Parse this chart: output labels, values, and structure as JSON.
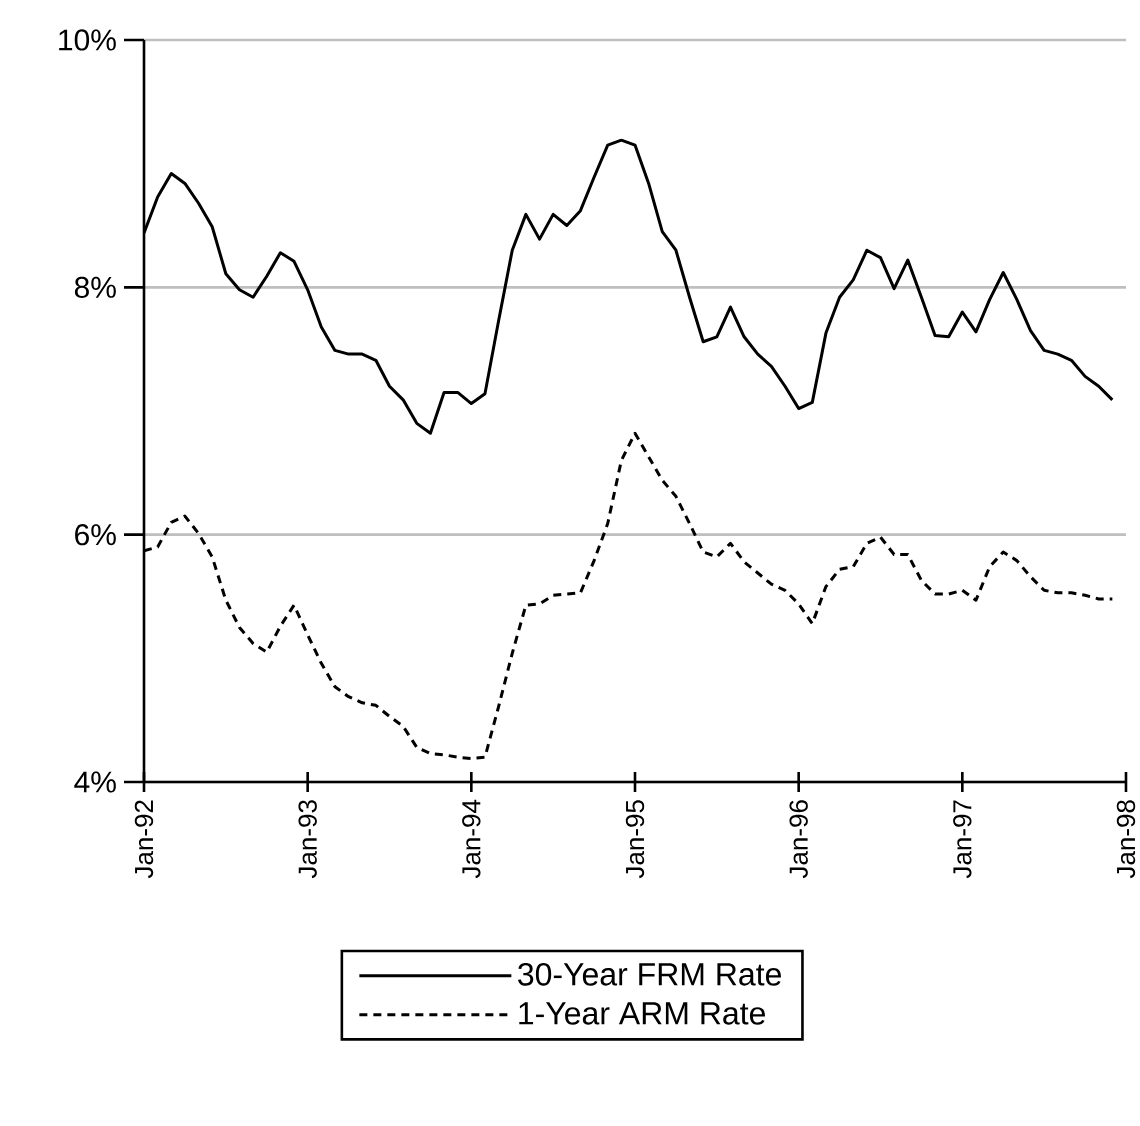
{
  "chart_data": {
    "type": "line",
    "x": [
      "1992-01",
      "1992-02",
      "1992-03",
      "1992-04",
      "1992-05",
      "1992-06",
      "1992-07",
      "1992-08",
      "1992-09",
      "1992-10",
      "1992-11",
      "1992-12",
      "1993-01",
      "1993-02",
      "1993-03",
      "1993-04",
      "1993-05",
      "1993-06",
      "1993-07",
      "1993-08",
      "1993-09",
      "1993-10",
      "1993-11",
      "1993-12",
      "1994-01",
      "1994-02",
      "1994-03",
      "1994-04",
      "1994-05",
      "1994-06",
      "1994-07",
      "1994-08",
      "1994-09",
      "1994-10",
      "1994-11",
      "1994-12",
      "1995-01",
      "1995-02",
      "1995-03",
      "1995-04",
      "1995-05",
      "1995-06",
      "1995-07",
      "1995-08",
      "1995-09",
      "1995-10",
      "1995-11",
      "1995-12",
      "1996-01",
      "1996-02",
      "1996-03",
      "1996-04",
      "1996-05",
      "1996-06",
      "1996-07",
      "1996-08",
      "1996-09",
      "1996-10",
      "1996-11",
      "1996-12",
      "1997-01",
      "1997-02",
      "1997-03",
      "1997-04",
      "1997-05",
      "1997-06",
      "1997-07",
      "1997-08",
      "1997-09",
      "1997-10",
      "1997-11",
      "1997-12"
    ],
    "series": [
      {
        "name": "30-Year FRM Rate",
        "color": "#000000",
        "line_style": "solid",
        "values": [
          8.44,
          8.73,
          8.92,
          8.84,
          8.68,
          8.49,
          8.11,
          7.98,
          7.92,
          8.09,
          8.28,
          8.21,
          7.98,
          7.68,
          7.49,
          7.46,
          7.46,
          7.41,
          7.2,
          7.09,
          6.9,
          6.82,
          7.15,
          7.15,
          7.06,
          7.14,
          7.73,
          8.3,
          8.59,
          8.39,
          8.59,
          8.5,
          8.62,
          8.89,
          9.15,
          9.19,
          9.15,
          8.84,
          8.45,
          8.3,
          7.92,
          7.56,
          7.6,
          7.84,
          7.6,
          7.46,
          7.36,
          7.2,
          7.02,
          7.07,
          7.63,
          7.92,
          8.06,
          8.3,
          8.24,
          7.99,
          8.22,
          7.92,
          7.61,
          7.6,
          7.8,
          7.64,
          7.9,
          8.12,
          7.9,
          7.65,
          7.49,
          7.46,
          7.41,
          7.28,
          7.2,
          7.09
        ]
      },
      {
        "name": "1-Year ARM Rate",
        "color": "#000000",
        "line_style": "dashed",
        "values": [
          5.87,
          5.9,
          6.1,
          6.15,
          6.01,
          5.82,
          5.47,
          5.25,
          5.12,
          5.05,
          5.26,
          5.43,
          5.19,
          4.96,
          4.77,
          4.69,
          4.64,
          4.62,
          4.53,
          4.45,
          4.28,
          4.23,
          4.22,
          4.2,
          4.19,
          4.2,
          4.61,
          5.04,
          5.43,
          5.44,
          5.51,
          5.52,
          5.53,
          5.79,
          6.09,
          6.6,
          6.82,
          6.63,
          6.44,
          6.31,
          6.09,
          5.86,
          5.82,
          5.93,
          5.78,
          5.69,
          5.6,
          5.55,
          5.44,
          5.28,
          5.58,
          5.72,
          5.74,
          5.93,
          5.98,
          5.84,
          5.84,
          5.63,
          5.52,
          5.52,
          5.55,
          5.47,
          5.74,
          5.86,
          5.79,
          5.66,
          5.55,
          5.53,
          5.53,
          5.51,
          5.48,
          5.48
        ]
      }
    ],
    "xlim": [
      "1992-01",
      "1998-01"
    ],
    "xticks": [
      {
        "value": "1992-01",
        "label": "Jan-92"
      },
      {
        "value": "1993-01",
        "label": "Jan-93"
      },
      {
        "value": "1994-01",
        "label": "Jan-94"
      },
      {
        "value": "1995-01",
        "label": "Jan-95"
      },
      {
        "value": "1996-01",
        "label": "Jan-96"
      },
      {
        "value": "1997-01",
        "label": "Jan-97"
      },
      {
        "value": "1998-01",
        "label": "Jan-98"
      }
    ],
    "ylim": [
      4,
      10
    ],
    "yticks": [
      {
        "value": 4,
        "label": "4%"
      },
      {
        "value": 6,
        "label": "6%"
      },
      {
        "value": 8,
        "label": "8%"
      },
      {
        "value": 10,
        "label": "10%"
      }
    ],
    "grid": "y",
    "legend": "bottom"
  }
}
